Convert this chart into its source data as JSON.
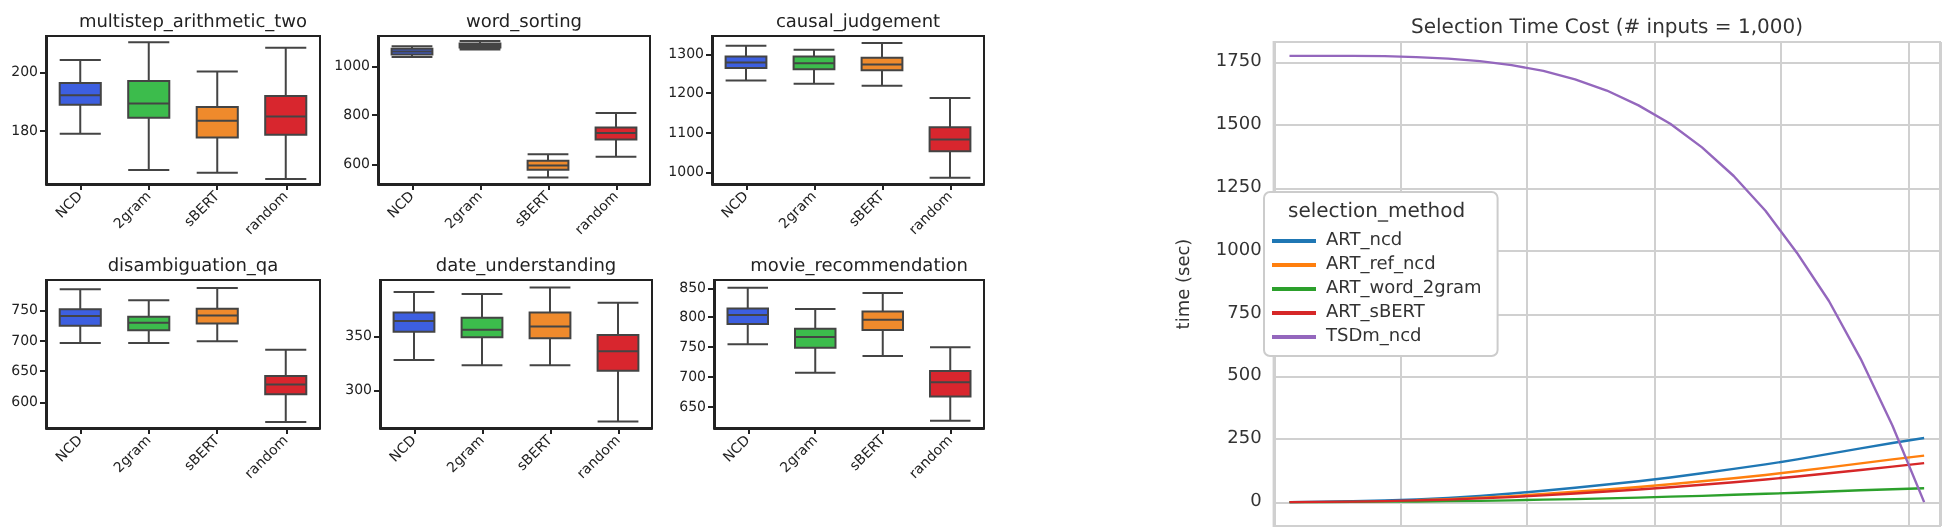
{
  "chart_data": [
    {
      "type": "box",
      "title": "multistep_arithmetic_two",
      "categories": [
        "NCD",
        "2gram",
        "sBERT",
        "random"
      ],
      "colors": [
        "#3d5fe0",
        "#3cbc4c",
        "#ef8a2c",
        "#d8262e"
      ],
      "ylim": [
        162,
        212
      ],
      "yticks": [
        180,
        200
      ],
      "boxes": [
        {
          "low": 179,
          "q1": 188.8,
          "median": 192,
          "q3": 196.1,
          "high": 203.9
        },
        {
          "low": 166.7,
          "q1": 184.4,
          "median": 189.2,
          "q3": 196.8,
          "high": 209.9
        },
        {
          "low": 165.8,
          "q1": 177.7,
          "median": 183.4,
          "q3": 188,
          "high": 200
        },
        {
          "low": 163.7,
          "q1": 178.6,
          "median": 184.8,
          "q3": 191.7,
          "high": 208
        }
      ]
    },
    {
      "type": "box",
      "title": "word_sorting",
      "categories": [
        "NCD",
        "2gram",
        "sBERT",
        "random"
      ],
      "colors": [
        "#3d5fe0",
        "#3cbc4c",
        "#ef8a2c",
        "#d8262e"
      ],
      "ylim": [
        520,
        1120
      ],
      "yticks": [
        600,
        800,
        1000
      ],
      "boxes": [
        {
          "low": 1035,
          "q1": 1045,
          "median": 1057,
          "q3": 1068,
          "high": 1078
        },
        {
          "low": 1065,
          "q1": 1073,
          "median": 1081,
          "q3": 1090,
          "high": 1100
        },
        {
          "low": 546,
          "q1": 578,
          "median": 595,
          "q3": 614,
          "high": 641
        },
        {
          "low": 630,
          "q1": 700,
          "median": 727,
          "q3": 749,
          "high": 808
        }
      ]
    },
    {
      "type": "box",
      "title": "causal_judgement",
      "categories": [
        "NCD",
        "2gram",
        "sBERT",
        "random"
      ],
      "colors": [
        "#3d5fe0",
        "#3cbc4c",
        "#ef8a2c",
        "#d8262e"
      ],
      "ylim": [
        970,
        1345
      ],
      "yticks": [
        1000,
        1100,
        1200,
        1300
      ],
      "boxes": [
        {
          "low": 1232,
          "q1": 1264,
          "median": 1278,
          "q3": 1293,
          "high": 1320
        },
        {
          "low": 1224,
          "q1": 1261,
          "median": 1276,
          "q3": 1293,
          "high": 1310
        },
        {
          "low": 1219,
          "q1": 1258,
          "median": 1273,
          "q3": 1290,
          "high": 1327
        },
        {
          "low": 986,
          "q1": 1053,
          "median": 1083,
          "q3": 1114,
          "high": 1188
        }
      ]
    },
    {
      "type": "box",
      "title": "disambiguation_qa",
      "categories": [
        "NCD",
        "2gram",
        "sBERT",
        "random"
      ],
      "colors": [
        "#3d5fe0",
        "#3cbc4c",
        "#ef8a2c",
        "#d8262e"
      ],
      "ylim": [
        557,
        799
      ],
      "yticks": [
        600,
        650,
        700,
        750
      ],
      "boxes": [
        {
          "low": 696,
          "q1": 724,
          "median": 740,
          "q3": 751,
          "high": 784
        },
        {
          "low": 696,
          "q1": 717,
          "median": 729,
          "q3": 739,
          "high": 766
        },
        {
          "low": 699,
          "q1": 728,
          "median": 741,
          "q3": 752,
          "high": 786
        },
        {
          "low": 567,
          "q1": 612,
          "median": 628,
          "q3": 642,
          "high": 685
        }
      ]
    },
    {
      "type": "box",
      "title": "date_understanding",
      "categories": [
        "NCD",
        "2gram",
        "sBERT",
        "random"
      ],
      "colors": [
        "#3d5fe0",
        "#3cbc4c",
        "#ef8a2c",
        "#d8262e"
      ],
      "ylim": [
        265,
        402
      ],
      "yticks": [
        300,
        350
      ],
      "boxes": [
        {
          "low": 328,
          "q1": 354,
          "median": 364,
          "q3": 372,
          "high": 391
        },
        {
          "low": 323,
          "q1": 349,
          "median": 356,
          "q3": 367,
          "high": 389
        },
        {
          "low": 323,
          "q1": 348,
          "median": 359,
          "q3": 372,
          "high": 395
        },
        {
          "low": 271,
          "q1": 318,
          "median": 336,
          "q3": 351,
          "high": 381
        }
      ]
    },
    {
      "type": "box",
      "title": "movie_recommendation",
      "categories": [
        "NCD",
        "2gram",
        "sBERT",
        "random"
      ],
      "colors": [
        "#3d5fe0",
        "#3cbc4c",
        "#ef8a2c",
        "#d8262e"
      ],
      "ylim": [
        614,
        863
      ],
      "yticks": [
        650,
        700,
        750,
        800,
        850
      ],
      "boxes": [
        {
          "low": 755,
          "q1": 789,
          "median": 804,
          "q3": 815,
          "high": 850
        },
        {
          "low": 707,
          "q1": 749,
          "median": 767,
          "q3": 781,
          "high": 814
        },
        {
          "low": 735,
          "q1": 779,
          "median": 796,
          "q3": 810,
          "high": 841
        },
        {
          "low": 626,
          "q1": 667,
          "median": 691,
          "q3": 710,
          "high": 750
        }
      ]
    },
    {
      "type": "line",
      "title": "Selection Time Cost (# inputs = 1,000)",
      "ylabel": "time (sec)",
      "legend_title": "selection_method",
      "legend": "left",
      "grid": true,
      "tick_labels": "y",
      "ylim": [
        -95,
        1830
      ],
      "yticks": [
        0,
        250,
        500,
        750,
        1000,
        1250,
        1500,
        1750
      ],
      "categories": [
        null,
        null,
        null,
        null,
        null,
        null,
        null,
        null,
        null,
        null,
        null,
        null,
        null,
        null,
        null,
        null,
        null,
        null,
        null,
        null,
        null
      ],
      "series": [
        {
          "name": "ART_ncd",
          "color": "#1f77b4",
          "values": [
            0,
            2,
            4,
            7,
            11,
            17,
            25,
            34,
            45,
            57,
            70,
            83,
            98,
            115,
            132,
            150,
            170,
            192,
            214,
            235,
            255
          ]
        },
        {
          "name": "ART_ref_ncd",
          "color": "#ff7f0e",
          "values": [
            null,
            null,
            null,
            null,
            8,
            12,
            18,
            24,
            32,
            41,
            50,
            60,
            71,
            83,
            95,
            108,
            123,
            138,
            154,
            170,
            185
          ]
        },
        {
          "name": "ART_word_2gram",
          "color": "#2ca02c",
          "values": [
            0,
            0,
            1,
            2,
            2,
            4,
            5,
            7,
            10,
            12,
            15,
            18,
            22,
            25,
            29,
            33,
            37,
            42,
            47,
            51,
            55
          ]
        },
        {
          "name": "ART_sBERT",
          "color": "#d62728",
          "values": [
            0,
            1,
            2,
            4,
            7,
            10,
            15,
            20,
            27,
            34,
            42,
            50,
            59,
            69,
            79,
            90,
            102,
            115,
            128,
            141,
            155
          ]
        },
        {
          "name": "TSDm_ncd",
          "color": "#9467bd",
          "values": [
            1775,
            1775,
            1775,
            1774,
            1770,
            1764,
            1754,
            1738,
            1715,
            1681,
            1637,
            1578,
            1505,
            1411,
            1297,
            1159,
            990,
            800,
            570,
            305,
            0
          ]
        }
      ]
    }
  ]
}
